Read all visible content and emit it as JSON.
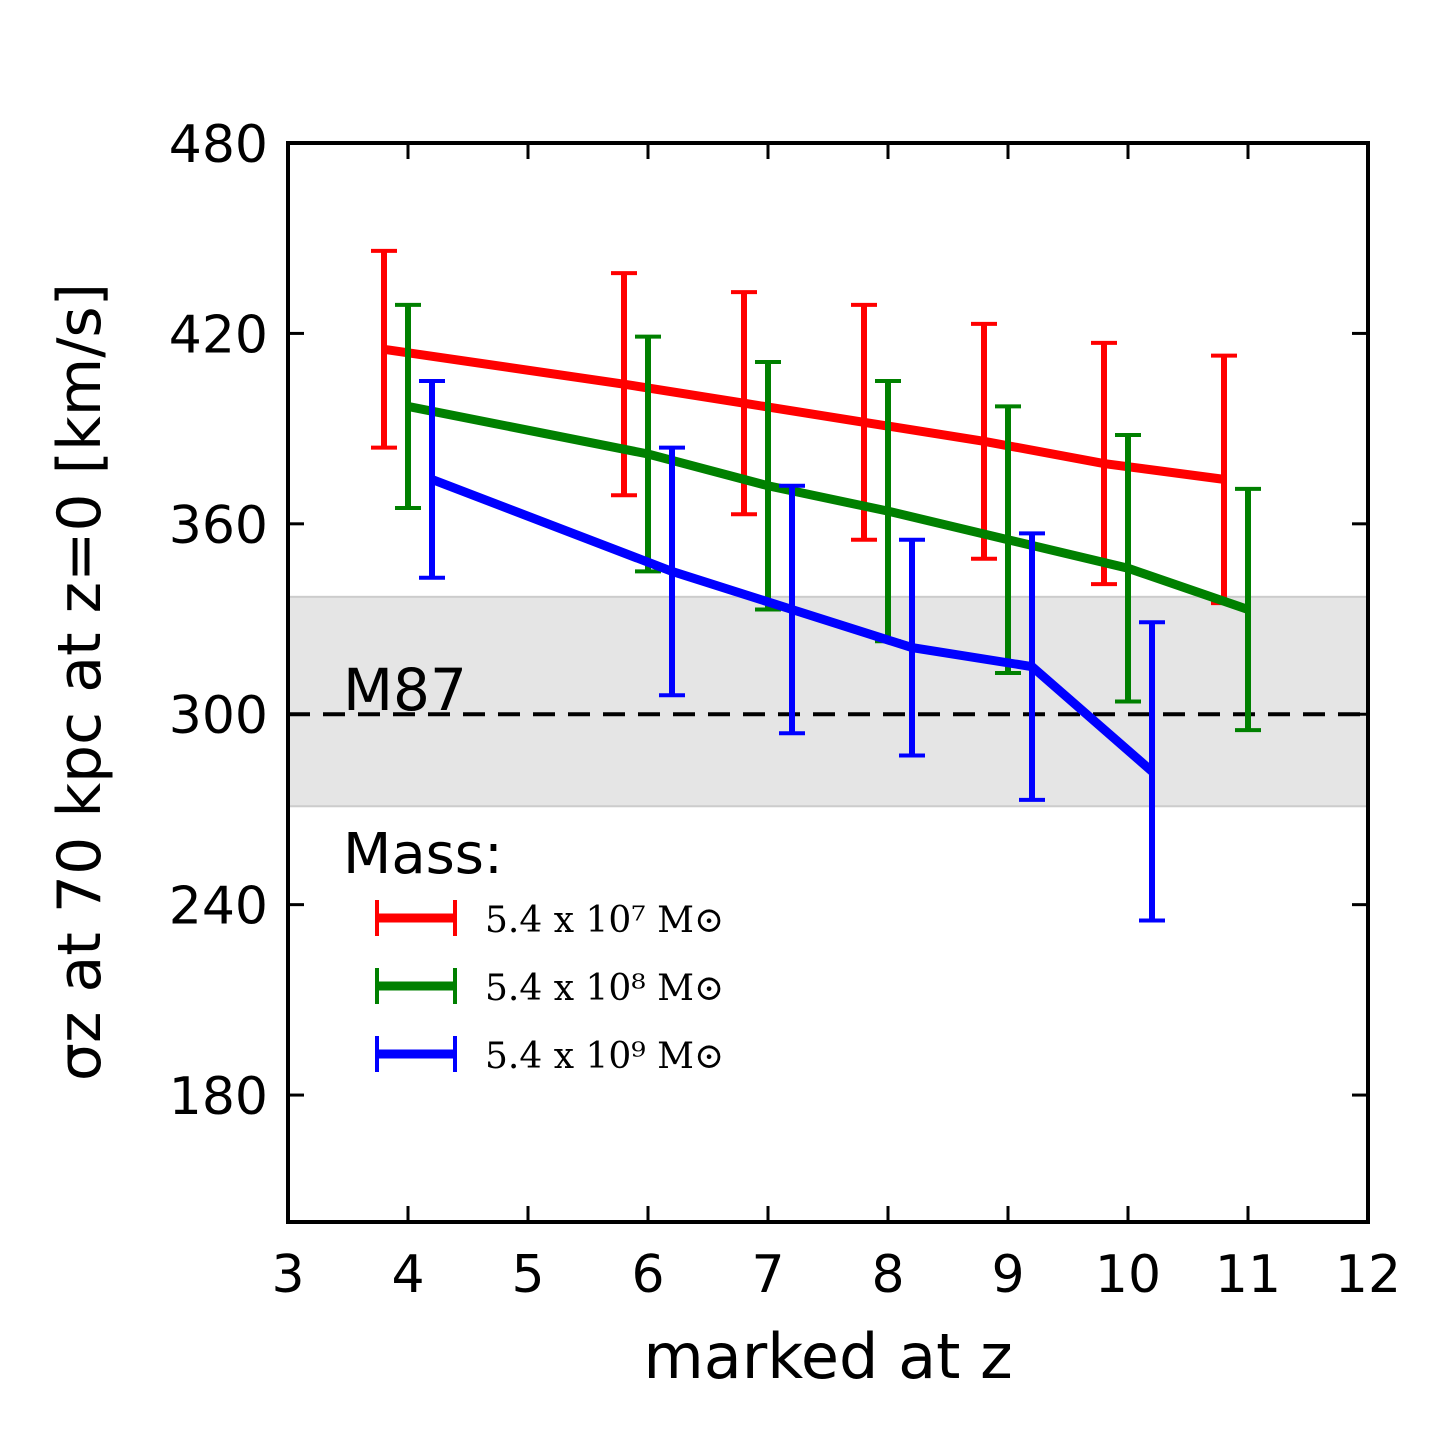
{
  "chart_data": {
    "type": "errorbar-line",
    "xlabel": "marked at z",
    "ylabel": "σz at 70 kpc at z=0 [km/s]",
    "legend_title": "Mass:",
    "annotation": "M87",
    "reference_line": 300,
    "reference_band": [
      271,
      337
    ],
    "xlim": [
      3,
      12
    ],
    "xticks": [
      3,
      4,
      5,
      6,
      7,
      8,
      9,
      10,
      11,
      12
    ],
    "ylim": [
      140,
      480
    ],
    "yticks": [
      180,
      240,
      300,
      360,
      420,
      480
    ],
    "series": [
      {
        "name": "5.4 x 10⁷ M⊙",
        "color": "#ff0000",
        "x": [
          3.8,
          5.8,
          6.8,
          7.8,
          8.8,
          9.8,
          10.8
        ],
        "values": [
          415,
          404,
          398,
          392,
          386,
          379,
          374
        ],
        "errors": [
          31,
          35,
          35,
          37,
          37,
          38,
          39
        ]
      },
      {
        "name": "5.4 x 10⁸ M⊙",
        "color": "#008000",
        "x": [
          4.0,
          6.0,
          7.0,
          8.0,
          9.0,
          10.0,
          11.0
        ],
        "values": [
          397,
          382,
          372,
          364,
          355,
          346,
          333
        ],
        "errors": [
          32,
          37,
          39,
          41,
          42,
          42,
          38
        ]
      },
      {
        "name": "5.4 x 10⁹ M⊙",
        "color": "#0000ff",
        "x": [
          4.2,
          6.2,
          7.2,
          8.2,
          9.2,
          10.2
        ],
        "values": [
          374,
          345,
          333,
          321,
          315,
          282
        ],
        "errors": [
          31,
          39,
          39,
          34,
          42,
          47
        ]
      }
    ]
  }
}
